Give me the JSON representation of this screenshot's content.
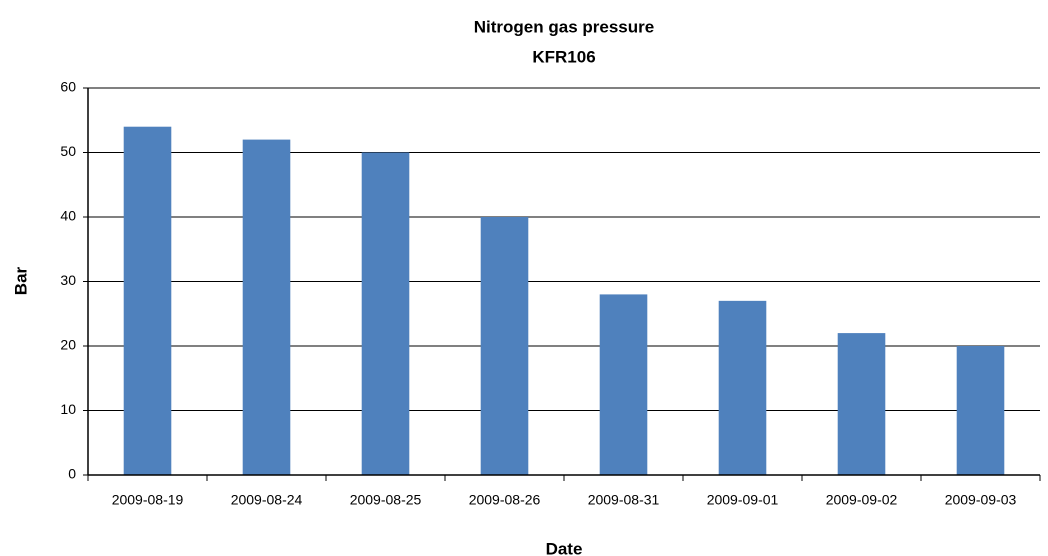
{
  "chart_data": {
    "type": "bar",
    "title": "Nitrogen gas pressure",
    "subtitle": "KFR106",
    "x_label": "Date",
    "y_label": "Bar",
    "categories": [
      "2009-08-19",
      "2009-08-24",
      "2009-08-25",
      "2009-08-26",
      "2009-08-31",
      "2009-09-01",
      "2009-09-02",
      "2009-09-03"
    ],
    "values": [
      54,
      52,
      50,
      40,
      28,
      27,
      22,
      20
    ],
    "color": "#4f81bd",
    "ylim": [
      0,
      60
    ],
    "yticks": [
      0,
      10,
      20,
      30,
      40,
      50,
      60
    ],
    "grid": true
  }
}
